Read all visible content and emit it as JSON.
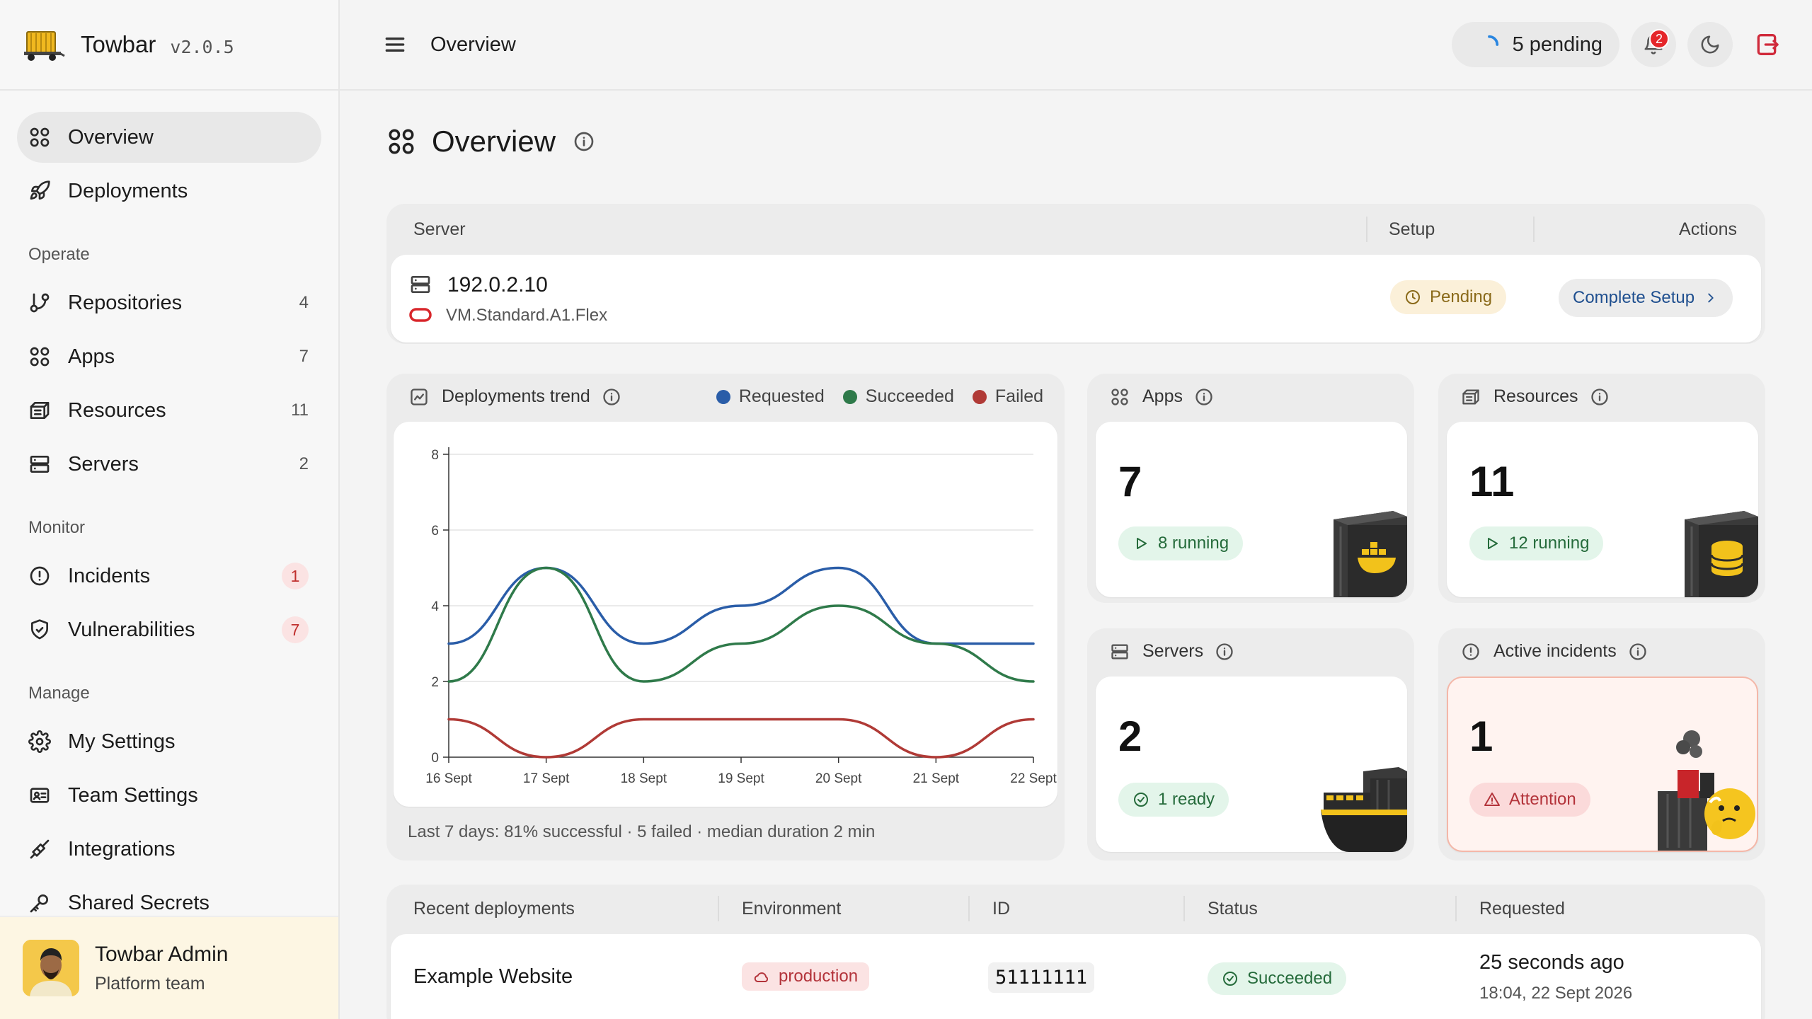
{
  "app": {
    "name": "Towbar",
    "version": "v2.0.5"
  },
  "sidebar": {
    "items_main": [
      {
        "label": "Overview",
        "icon": "grid-icon",
        "active": true
      },
      {
        "label": "Deployments",
        "icon": "rocket-icon"
      }
    ],
    "sections": [
      {
        "title": "Operate",
        "items": [
          {
            "label": "Repositories",
            "icon": "git-branch-icon",
            "count": "4"
          },
          {
            "label": "Apps",
            "icon": "grid-icon",
            "count": "7"
          },
          {
            "label": "Resources",
            "icon": "box-icon",
            "count": "11"
          },
          {
            "label": "Servers",
            "icon": "server-icon",
            "count": "2"
          }
        ]
      },
      {
        "title": "Monitor",
        "items": [
          {
            "label": "Incidents",
            "icon": "alert-circle-icon",
            "badge": "1"
          },
          {
            "label": "Vulnerabilities",
            "icon": "shield-check-icon",
            "badge": "7"
          }
        ]
      },
      {
        "title": "Manage",
        "items": [
          {
            "label": "My Settings",
            "icon": "gear-icon"
          },
          {
            "label": "Team Settings",
            "icon": "id-card-icon"
          },
          {
            "label": "Integrations",
            "icon": "plug-icon"
          },
          {
            "label": "Shared Secrets",
            "icon": "key-icon"
          }
        ]
      }
    ],
    "user": {
      "name": "Towbar Admin",
      "team": "Platform team"
    }
  },
  "topbar": {
    "title": "Overview",
    "pending": "5 pending",
    "notifications": "2"
  },
  "page": {
    "title": "Overview"
  },
  "server_panel": {
    "headers": {
      "server": "Server",
      "setup": "Setup",
      "actions": "Actions"
    },
    "row": {
      "ip": "192.0.2.10",
      "type": "VM.Standard.A1.Flex",
      "setup_status": "Pending",
      "action": "Complete Setup"
    }
  },
  "trend": {
    "title": "Deployments trend",
    "footer": "Last 7 days: 81% successful · 5 failed · median duration 2 min"
  },
  "chart_data": {
    "type": "line",
    "categories": [
      "16 Sept",
      "17 Sept",
      "18 Sept",
      "19 Sept",
      "20 Sept",
      "21 Sept",
      "22 Sept"
    ],
    "series": [
      {
        "name": "Requested",
        "color": "#2a5da8",
        "values": [
          3,
          5,
          3,
          4,
          5,
          3,
          3
        ]
      },
      {
        "name": "Succeeded",
        "color": "#2f7a4a",
        "values": [
          2,
          5,
          2,
          3,
          4,
          3,
          2
        ]
      },
      {
        "name": "Failed",
        "color": "#b03a36",
        "values": [
          1,
          0,
          1,
          1,
          1,
          0,
          1
        ]
      }
    ],
    "yticks": [
      0,
      2,
      4,
      6,
      8
    ],
    "ylim": [
      0,
      8
    ],
    "grid": true,
    "legend": "top-right"
  },
  "stats": {
    "apps": {
      "title": "Apps",
      "value": "7",
      "sub": "8 running"
    },
    "resources": {
      "title": "Resources",
      "value": "11",
      "sub": "12 running"
    },
    "servers": {
      "title": "Servers",
      "value": "2",
      "sub": "1 ready"
    },
    "incidents": {
      "title": "Active incidents",
      "value": "1",
      "sub": "Attention"
    }
  },
  "deployments": {
    "headers": {
      "name": "Recent deployments",
      "environment": "Environment",
      "id": "ID",
      "status": "Status",
      "requested": "Requested"
    },
    "rows": [
      {
        "name": "Example Website",
        "environment": "production",
        "id": "51111111",
        "status": "Succeeded",
        "requested": "25 seconds ago",
        "requested_at": "18:04, 22 Sept 2026"
      }
    ]
  }
}
